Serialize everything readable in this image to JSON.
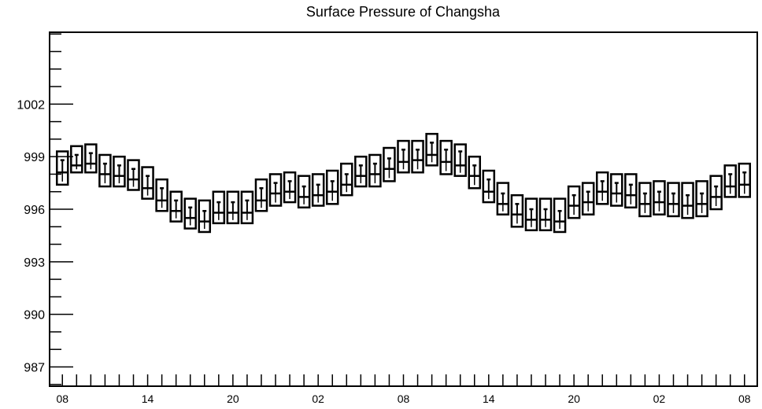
{
  "chart_data": {
    "type": "box",
    "title": "Surface Pressure of Changsha",
    "xlabel": "",
    "ylabel": "",
    "ylim": [
      985.9,
      1006.1
    ],
    "yticks": [
      987,
      990,
      993,
      996,
      999,
      1002
    ],
    "ytick_labels": [
      "987",
      "990",
      "993",
      "996",
      "999",
      "1002"
    ],
    "xtick_labels": [
      "08",
      "14",
      "20",
      "02",
      "08",
      "14",
      "20",
      "02",
      "08"
    ],
    "x_hours": [
      0,
      6,
      12,
      18,
      24,
      30,
      36,
      42,
      48
    ],
    "x_range": [
      -0.9,
      48.9
    ],
    "grid": false,
    "box_x_hours": [
      0,
      1,
      2,
      3,
      4,
      5,
      6,
      7,
      8,
      9,
      10,
      11,
      12,
      13,
      14,
      15,
      16,
      17,
      18,
      19,
      20,
      21,
      22,
      23,
      24,
      25,
      26,
      27,
      28,
      29,
      30,
      31,
      32,
      33,
      34,
      35,
      36,
      37,
      38,
      39,
      40,
      41,
      42,
      43,
      44,
      45,
      46,
      47,
      48
    ],
    "box_top": [
      999.3,
      999.6,
      999.7,
      999.1,
      999.0,
      998.8,
      998.4,
      997.7,
      997.0,
      996.6,
      996.5,
      997.0,
      997.0,
      997.0,
      997.7,
      998.0,
      998.1,
      997.9,
      998.0,
      998.2,
      998.6,
      999.0,
      999.1,
      999.5,
      999.9,
      999.9,
      1000.3,
      999.9,
      999.7,
      999.0,
      998.2,
      997.5,
      996.8,
      996.6,
      996.6,
      996.6,
      997.3,
      997.5,
      998.1,
      998.0,
      998.0,
      997.5,
      997.6,
      997.5,
      997.5,
      997.6,
      997.9,
      998.5,
      998.6
    ],
    "box_median": [
      998.1,
      998.5,
      998.6,
      998.0,
      997.9,
      997.7,
      997.2,
      996.5,
      995.9,
      995.5,
      995.3,
      995.8,
      995.8,
      995.8,
      996.5,
      996.9,
      997.0,
      996.7,
      996.8,
      997.0,
      997.4,
      997.9,
      998.0,
      998.3,
      998.7,
      998.8,
      999.1,
      998.7,
      998.5,
      997.9,
      997.0,
      996.3,
      995.7,
      995.4,
      995.4,
      995.3,
      996.2,
      996.4,
      997.0,
      996.9,
      996.8,
      996.3,
      996.4,
      996.3,
      996.2,
      996.3,
      996.7,
      997.3,
      997.4
    ],
    "box_bottom": [
      997.4,
      998.1,
      998.1,
      997.3,
      997.3,
      997.1,
      996.6,
      995.9,
      995.3,
      994.9,
      994.7,
      995.2,
      995.2,
      995.2,
      995.9,
      996.2,
      996.4,
      996.1,
      996.2,
      996.3,
      996.8,
      997.3,
      997.3,
      997.6,
      998.1,
      998.1,
      998.5,
      998.0,
      997.9,
      997.2,
      996.4,
      995.7,
      995.0,
      994.8,
      994.8,
      994.7,
      995.5,
      995.7,
      996.3,
      996.2,
      996.1,
      995.6,
      995.7,
      995.6,
      995.5,
      995.6,
      996.0,
      996.7,
      996.7
    ],
    "box_whisker": [
      998.8,
      999.1,
      999.2,
      998.6,
      998.5,
      998.3,
      997.9,
      997.2,
      996.5,
      996.1,
      995.9,
      996.4,
      996.4,
      996.5,
      997.2,
      997.5,
      997.6,
      997.3,
      997.4,
      997.6,
      998.0,
      998.5,
      998.6,
      998.9,
      999.4,
      999.4,
      999.8,
      999.4,
      999.3,
      998.5,
      997.7,
      996.9,
      996.3,
      996.0,
      996.0,
      995.9,
      996.8,
      997.0,
      997.6,
      997.5,
      997.4,
      996.9,
      997.0,
      996.9,
      996.8,
      996.9,
      997.3,
      998.0,
      998.1
    ]
  }
}
